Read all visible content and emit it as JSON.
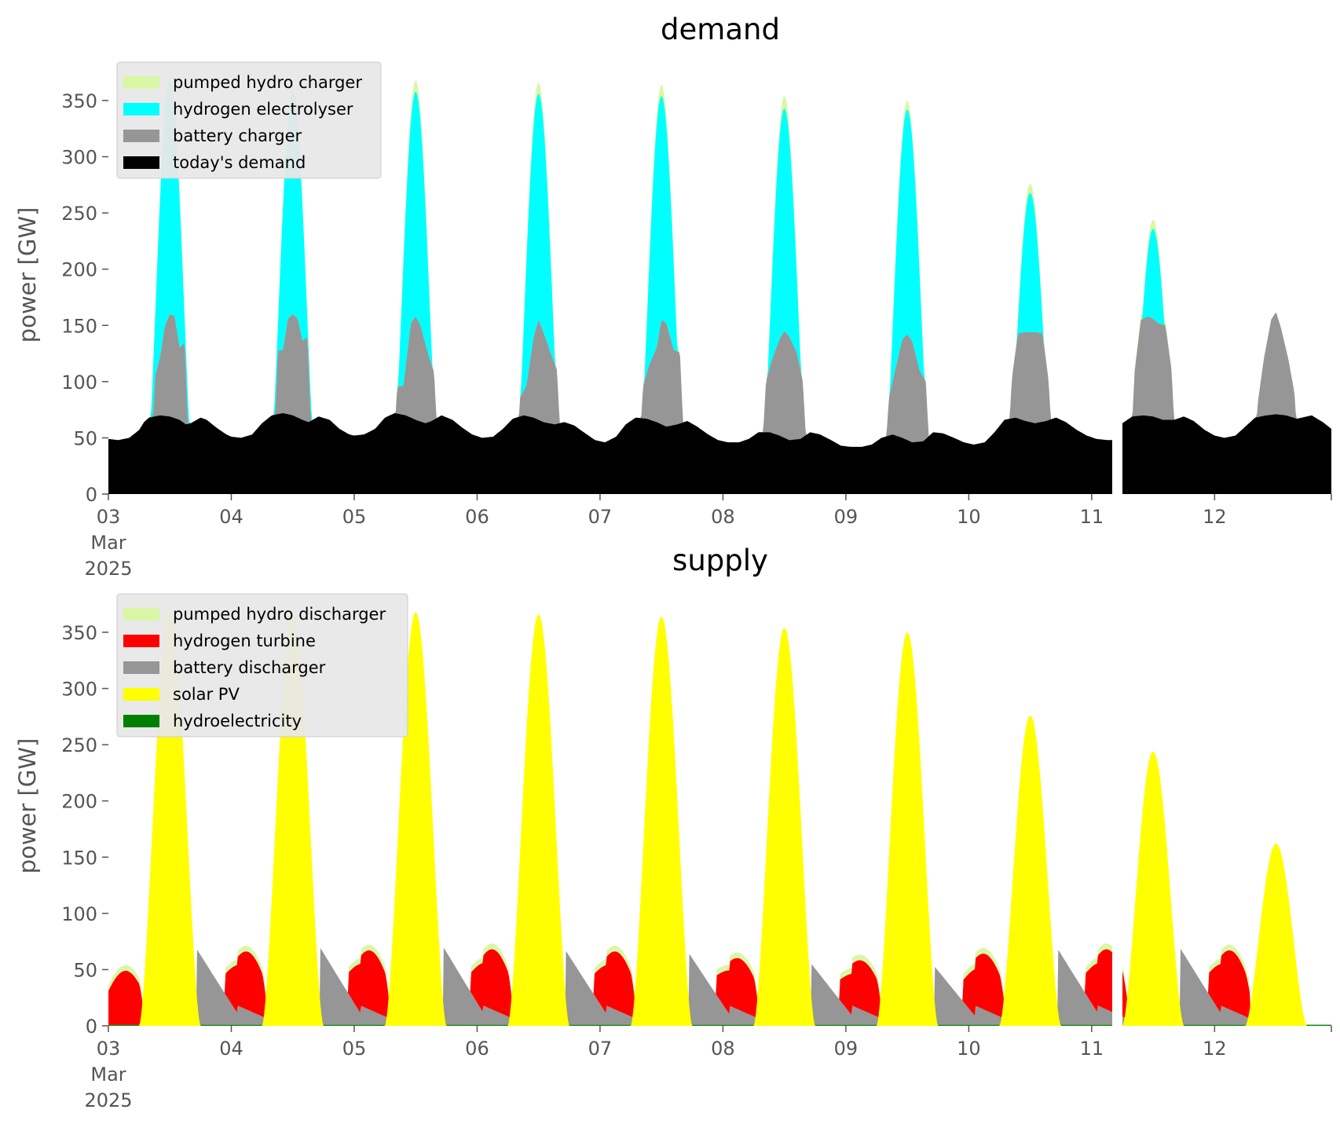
{
  "chart_data": [
    {
      "type": "area",
      "stacked": true,
      "title": "demand",
      "ylabel": "power [GW]",
      "xlabel": "",
      "ylim": [
        0,
        380
      ],
      "yticks": [
        0,
        50,
        100,
        150,
        200,
        250,
        300,
        350
      ],
      "x_range_days": [
        0,
        9.95
      ],
      "xticks": [
        {
          "day": 0,
          "lines": [
            "03",
            "Mar",
            "2025"
          ]
        },
        {
          "day": 1,
          "lines": [
            "04"
          ]
        },
        {
          "day": 2,
          "lines": [
            "05"
          ]
        },
        {
          "day": 3,
          "lines": [
            "06"
          ]
        },
        {
          "day": 4,
          "lines": [
            "07"
          ]
        },
        {
          "day": 5,
          "lines": [
            "08"
          ]
        },
        {
          "day": 6,
          "lines": [
            "09"
          ]
        },
        {
          "day": 7,
          "lines": [
            "10"
          ]
        },
        {
          "day": 8,
          "lines": [
            "11"
          ]
        },
        {
          "day": 9,
          "lines": [
            "12"
          ]
        }
      ],
      "grid": false,
      "legend_position": "upper-left",
      "gap_days": [
        8.17,
        8.25
      ],
      "legend_order": [
        "pumped hydro charger",
        "hydrogen electrolyser",
        "battery charger",
        "today's demand"
      ],
      "baseline": [
        [
          0,
          49
        ],
        [
          0.08,
          48
        ],
        [
          0.17,
          50
        ],
        [
          0.25,
          57
        ],
        [
          0.29,
          64
        ],
        [
          0.33,
          68
        ],
        [
          0.42,
          70
        ],
        [
          0.5,
          69
        ],
        [
          0.58,
          66
        ],
        [
          0.63,
          62
        ],
        [
          0.67,
          63
        ],
        [
          0.75,
          68
        ],
        [
          0.8,
          66
        ],
        [
          0.88,
          59
        ],
        [
          0.96,
          53
        ],
        [
          1,
          51
        ],
        [
          1.08,
          50
        ],
        [
          1.17,
          53
        ],
        [
          1.25,
          63
        ],
        [
          1.33,
          70
        ],
        [
          1.42,
          72
        ],
        [
          1.5,
          70
        ],
        [
          1.58,
          66
        ],
        [
          1.63,
          64
        ],
        [
          1.71,
          69
        ],
        [
          1.8,
          66
        ],
        [
          1.88,
          58
        ],
        [
          1.96,
          53
        ],
        [
          2,
          52
        ],
        [
          2.08,
          53
        ],
        [
          2.17,
          58
        ],
        [
          2.25,
          68
        ],
        [
          2.33,
          72
        ],
        [
          2.42,
          70
        ],
        [
          2.5,
          66
        ],
        [
          2.58,
          63
        ],
        [
          2.63,
          65
        ],
        [
          2.71,
          70
        ],
        [
          2.8,
          66
        ],
        [
          2.88,
          59
        ],
        [
          2.96,
          53
        ],
        [
          3.04,
          50
        ],
        [
          3.13,
          51
        ],
        [
          3.21,
          58
        ],
        [
          3.29,
          67
        ],
        [
          3.38,
          70
        ],
        [
          3.46,
          68
        ],
        [
          3.54,
          64
        ],
        [
          3.63,
          62
        ],
        [
          3.71,
          64
        ],
        [
          3.79,
          61
        ],
        [
          3.88,
          54
        ],
        [
          3.96,
          48
        ],
        [
          4.04,
          46
        ],
        [
          4.13,
          51
        ],
        [
          4.21,
          62
        ],
        [
          4.29,
          68
        ],
        [
          4.38,
          67
        ],
        [
          4.46,
          64
        ],
        [
          4.54,
          60
        ],
        [
          4.63,
          62
        ],
        [
          4.71,
          65
        ],
        [
          4.79,
          60
        ],
        [
          4.88,
          53
        ],
        [
          4.96,
          48
        ],
        [
          5.04,
          46
        ],
        [
          5.13,
          46
        ],
        [
          5.21,
          49
        ],
        [
          5.29,
          55
        ],
        [
          5.38,
          55
        ],
        [
          5.46,
          52
        ],
        [
          5.54,
          48
        ],
        [
          5.63,
          49
        ],
        [
          5.71,
          55
        ],
        [
          5.79,
          53
        ],
        [
          5.88,
          48
        ],
        [
          5.96,
          43
        ],
        [
          6.04,
          42
        ],
        [
          6.13,
          42
        ],
        [
          6.21,
          44
        ],
        [
          6.29,
          50
        ],
        [
          6.38,
          53
        ],
        [
          6.46,
          50
        ],
        [
          6.54,
          46
        ],
        [
          6.63,
          47
        ],
        [
          6.71,
          55
        ],
        [
          6.79,
          54
        ],
        [
          6.88,
          50
        ],
        [
          6.96,
          46
        ],
        [
          7.04,
          44
        ],
        [
          7.13,
          46
        ],
        [
          7.21,
          55
        ],
        [
          7.29,
          66
        ],
        [
          7.38,
          68
        ],
        [
          7.46,
          65
        ],
        [
          7.54,
          63
        ],
        [
          7.63,
          65
        ],
        [
          7.71,
          68
        ],
        [
          7.79,
          64
        ],
        [
          7.88,
          57
        ],
        [
          7.96,
          52
        ],
        [
          8.04,
          49
        ],
        [
          8.13,
          48
        ],
        [
          8.17,
          48
        ],
        [
          8.25,
          63
        ],
        [
          8.33,
          69
        ],
        [
          8.42,
          70
        ],
        [
          8.5,
          69
        ],
        [
          8.58,
          66
        ],
        [
          8.67,
          66
        ],
        [
          8.75,
          69
        ],
        [
          8.83,
          65
        ],
        [
          8.92,
          57
        ],
        [
          9,
          52
        ],
        [
          9.08,
          50
        ],
        [
          9.17,
          52
        ],
        [
          9.25,
          60
        ],
        [
          9.33,
          68
        ],
        [
          9.42,
          70
        ],
        [
          9.5,
          71
        ],
        [
          9.58,
          70
        ],
        [
          9.67,
          67
        ],
        [
          9.75,
          69
        ],
        [
          9.79,
          70
        ],
        [
          9.88,
          64
        ],
        [
          9.95,
          58
        ]
      ],
      "days": [
        {
          "center": 0.5,
          "battery_peak": 160,
          "battery_steps": [
            [
              0.38,
              105
            ],
            [
              0.42,
              122
            ],
            [
              0.46,
              150
            ],
            [
              0.5,
              160
            ],
            [
              0.54,
              158
            ],
            [
              0.58,
              130
            ],
            [
              0.62,
              135
            ]
          ],
          "electrolyser_peak": 368,
          "top_peak": 370
        },
        {
          "center": 1.5,
          "battery_peak": 160,
          "battery_steps": [
            [
              1.38,
              128
            ],
            [
              1.42,
              128
            ],
            [
              1.46,
              156
            ],
            [
              1.5,
              160
            ],
            [
              1.54,
              156
            ],
            [
              1.58,
              136
            ],
            [
              1.62,
              140
            ]
          ],
          "electrolyser_peak": 358,
          "top_peak": 360
        },
        {
          "center": 2.5,
          "battery_peak": 158,
          "battery_steps": [
            [
              2.35,
              96
            ],
            [
              2.4,
              96
            ],
            [
              2.46,
              152
            ],
            [
              2.5,
              158
            ],
            [
              2.54,
              150
            ],
            [
              2.6,
              125
            ],
            [
              2.65,
              108
            ]
          ],
          "electrolyser_peak": 358,
          "top_peak": 368
        },
        {
          "center": 3.5,
          "battery_peak": 155,
          "battery_steps": [
            [
              3.35,
              86
            ],
            [
              3.4,
              96
            ],
            [
              3.46,
              140
            ],
            [
              3.5,
              155
            ],
            [
              3.54,
              144
            ],
            [
              3.6,
              125
            ],
            [
              3.65,
              110
            ]
          ],
          "electrolyser_peak": 356,
          "top_peak": 366
        },
        {
          "center": 4.5,
          "battery_peak": 155,
          "battery_steps": [
            [
              4.35,
              96
            ],
            [
              4.4,
              115
            ],
            [
              4.46,
              130
            ],
            [
              4.5,
              155
            ],
            [
              4.54,
              152
            ],
            [
              4.6,
              128
            ],
            [
              4.65,
              126
            ]
          ],
          "electrolyser_peak": 354,
          "top_peak": 364
        },
        {
          "center": 5.5,
          "battery_peak": 145,
          "battery_steps": [
            [
              5.35,
              100
            ],
            [
              5.4,
              120
            ],
            [
              5.46,
              138
            ],
            [
              5.5,
              145
            ],
            [
              5.54,
              140
            ],
            [
              5.6,
              126
            ],
            [
              5.65,
              100
            ]
          ],
          "electrolyser_peak": 343,
          "top_peak": 354
        },
        {
          "center": 6.5,
          "battery_peak": 142,
          "battery_steps": [
            [
              6.35,
              85
            ],
            [
              6.4,
              110
            ],
            [
              6.46,
              138
            ],
            [
              6.5,
              142
            ],
            [
              6.54,
              136
            ],
            [
              6.6,
              110
            ],
            [
              6.65,
              100
            ]
          ],
          "electrolyser_peak": 342,
          "top_peak": 350
        },
        {
          "center": 7.5,
          "battery_peak": 144,
          "battery_steps": [
            [
              7.35,
              102
            ],
            [
              7.4,
              143
            ],
            [
              7.46,
              144
            ],
            [
              7.5,
              144
            ],
            [
              7.54,
              144
            ],
            [
              7.6,
              143
            ],
            [
              7.65,
              100
            ]
          ],
          "electrolyser_peak": 268,
          "top_peak": 276
        },
        {
          "center": 8.5,
          "battery_peak": 158,
          "battery_steps": [
            [
              8.35,
              110
            ],
            [
              8.4,
              155
            ],
            [
              8.46,
              158
            ],
            [
              8.5,
              156
            ],
            [
              8.54,
              152
            ],
            [
              8.6,
              150
            ],
            [
              8.65,
              110
            ]
          ],
          "electrolyser_peak": 236,
          "top_peak": 244
        },
        {
          "center": 9.5,
          "battery_peak": 162,
          "battery_steps": [
            [
              9.35,
              80
            ],
            [
              9.4,
              120
            ],
            [
              9.46,
              155
            ],
            [
              9.5,
              162
            ],
            [
              9.54,
              148
            ],
            [
              9.6,
              120
            ],
            [
              9.65,
              90
            ]
          ],
          "electrolyser_peak": 0,
          "top_peak": 0
        }
      ],
      "colors": {
        "pumped hydro charger": "#d9f7a5",
        "hydrogen electrolyser": "#00ffff",
        "battery charger": "#969696",
        "today's demand": "#000000"
      }
    },
    {
      "type": "area",
      "stacked": true,
      "title": "supply",
      "ylabel": "power [GW]",
      "xlabel": "",
      "ylim": [
        0,
        380
      ],
      "yticks": [
        0,
        50,
        100,
        150,
        200,
        250,
        300,
        350
      ],
      "x_range_days": [
        0,
        9.95
      ],
      "xticks": [
        {
          "day": 0,
          "lines": [
            "03",
            "Mar",
            "2025"
          ]
        },
        {
          "day": 1,
          "lines": [
            "04"
          ]
        },
        {
          "day": 2,
          "lines": [
            "05"
          ]
        },
        {
          "day": 3,
          "lines": [
            "06"
          ]
        },
        {
          "day": 4,
          "lines": [
            "07"
          ]
        },
        {
          "day": 5,
          "lines": [
            "08"
          ]
        },
        {
          "day": 6,
          "lines": [
            "09"
          ]
        },
        {
          "day": 7,
          "lines": [
            "10"
          ]
        },
        {
          "day": 8,
          "lines": [
            "11"
          ]
        },
        {
          "day": 9,
          "lines": [
            "12"
          ]
        }
      ],
      "grid": false,
      "legend_position": "upper-left",
      "gap_days": [
        8.17,
        8.25
      ],
      "legend_order": [
        "pumped hydro discharger",
        "hydrogen turbine",
        "battery discharger",
        "solar PV",
        "hydroelectricity"
      ],
      "solar_peaks": [
        370,
        370,
        368,
        366,
        364,
        354,
        350,
        276,
        244,
        162
      ],
      "battery_discharger_evening": [
        67,
        69,
        70,
        66,
        64,
        54,
        52,
        68,
        68,
        0
      ],
      "hydrogen_night_level": [
        40,
        44,
        45,
        46,
        44,
        38,
        36,
        42,
        46,
        45
      ],
      "colors": {
        "pumped hydro discharger": "#d9f7a5",
        "hydrogen turbine": "#ff0000",
        "battery discharger": "#969696",
        "solar PV": "#ffff00",
        "hydroelectricity": "#008000"
      }
    }
  ]
}
